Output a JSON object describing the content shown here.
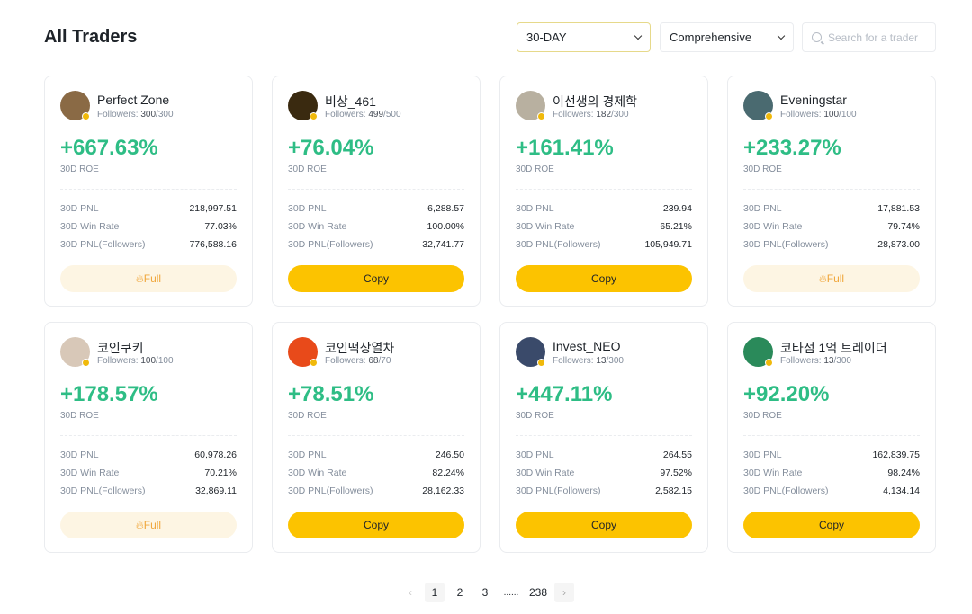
{
  "title": "All Traders",
  "filters": {
    "period": "30-DAY",
    "sort": "Comprehensive",
    "search_placeholder": "Search for a trader"
  },
  "labels": {
    "followers": "Followers: ",
    "roe": "30D ROE",
    "pnl": "30D PNL",
    "win": "30D Win Rate",
    "pnlf": "30D PNL(Followers)"
  },
  "traders": [
    {
      "name": "Perfect Zone",
      "followers": "300",
      "max": "/300",
      "roe": "+667.63%",
      "pnl": "218,997.51",
      "win": "77.03%",
      "pnlf": "776,588.16",
      "button": "Full",
      "full": true,
      "color": "#8a6a45"
    },
    {
      "name": "비상_461",
      "followers": "499",
      "max": "/500",
      "roe": "+76.04%",
      "pnl": "6,288.57",
      "win": "100.00%",
      "pnlf": "32,741.77",
      "button": "Copy",
      "full": false,
      "color": "#3a2a10"
    },
    {
      "name": "이선생의 경제학",
      "followers": "182",
      "max": "/300",
      "roe": "+161.41%",
      "pnl": "239.94",
      "win": "65.21%",
      "pnlf": "105,949.71",
      "button": "Copy",
      "full": false,
      "color": "#b8b0a0"
    },
    {
      "name": "Eveningstar",
      "followers": "100",
      "max": "/100",
      "roe": "+233.27%",
      "pnl": "17,881.53",
      "win": "79.74%",
      "pnlf": "28,873.00",
      "button": "Full",
      "full": true,
      "color": "#4a6a70"
    },
    {
      "name": "코인쿠키",
      "followers": "100",
      "max": "/100",
      "roe": "+178.57%",
      "pnl": "60,978.26",
      "win": "70.21%",
      "pnlf": "32,869.11",
      "button": "Full",
      "full": true,
      "color": "#d8c8b8"
    },
    {
      "name": "코인떡상열차",
      "followers": "68",
      "max": "/70",
      "roe": "+78.51%",
      "pnl": "246.50",
      "win": "82.24%",
      "pnlf": "28,162.33",
      "button": "Copy",
      "full": false,
      "color": "#e84a1a"
    },
    {
      "name": "Invest_NEO",
      "followers": "13",
      "max": "/300",
      "roe": "+447.11%",
      "pnl": "264.55",
      "win": "97.52%",
      "pnlf": "2,582.15",
      "button": "Copy",
      "full": false,
      "color": "#3a4a6a"
    },
    {
      "name": "코타점 1억 트레이더",
      "followers": "13",
      "max": "/300",
      "roe": "+92.20%",
      "pnl": "162,839.75",
      "win": "98.24%",
      "pnlf": "4,134.14",
      "button": "Copy",
      "full": false,
      "color": "#2a8a5a"
    }
  ],
  "pagination": {
    "pages": [
      "1",
      "2",
      "3"
    ],
    "ellipsis": "......",
    "last": "238",
    "current": "1"
  }
}
